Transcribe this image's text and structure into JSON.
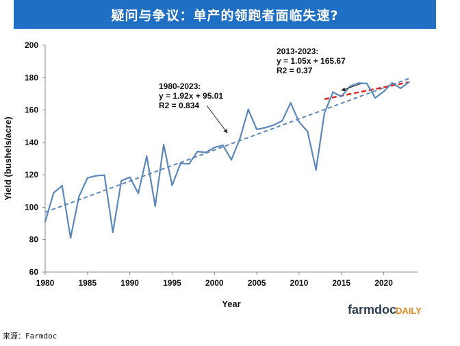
{
  "banner": {
    "title": "疑问与争议：单产的领跑者面临失速?"
  },
  "source": "来源：Farmdoc",
  "logo": {
    "brand": "farmdoc",
    "suffix": "DAILY"
  },
  "colors": {
    "banner": "#1f6fc4",
    "series": "#5b87bb",
    "trend_full": "#5b87bb",
    "trend_recent": "#e02020"
  },
  "chart_data": {
    "type": "line",
    "title": "",
    "xlabel": "Year",
    "ylabel": "Yield (bushels/acre)",
    "xlim": [
      1980,
      2024
    ],
    "ylim": [
      60,
      200
    ],
    "xticks": [
      1980,
      1985,
      1990,
      1995,
      2000,
      2005,
      2010,
      2015,
      2020
    ],
    "yticks": [
      60,
      80,
      100,
      120,
      140,
      160,
      180,
      200
    ],
    "grid": false,
    "series": [
      {
        "name": "Yield",
        "x": [
          1980,
          1981,
          1982,
          1983,
          1984,
          1985,
          1986,
          1987,
          1988,
          1989,
          1990,
          1991,
          1992,
          1993,
          1994,
          1995,
          1996,
          1997,
          1998,
          1999,
          2000,
          2001,
          2002,
          2003,
          2004,
          2005,
          2006,
          2007,
          2008,
          2009,
          2010,
          2011,
          2012,
          2013,
          2014,
          2015,
          2016,
          2017,
          2018,
          2019,
          2020,
          2021,
          2022,
          2023
        ],
        "values": [
          91,
          108.9,
          113.2,
          81.1,
          106.7,
          118,
          119.4,
          119.8,
          84.6,
          116.3,
          118.5,
          108.6,
          131.5,
          100.7,
          138.6,
          113.5,
          127.1,
          126.7,
          134.4,
          133.8,
          136.9,
          138.2,
          129.3,
          142.2,
          160.3,
          148,
          149.1,
          150.7,
          153.3,
          164.4,
          152.6,
          146.8,
          123.1,
          158.1,
          171,
          168.4,
          174.6,
          176.6,
          176.4,
          167.5,
          171.4,
          176.7,
          173.4,
          177.3
        ]
      }
    ],
    "trendlines": [
      {
        "name": "1980-2023",
        "equation": "y = 1.92x + 95.01",
        "r2": "R2 = 0.834",
        "x": [
          1980,
          2023
        ],
        "values": [
          96.9,
          179.5
        ],
        "style": "dashed",
        "color": "#5b87bb"
      },
      {
        "name": "2013-2023",
        "equation": "y = 1.05x + 165.67",
        "r2": "R2 = 0.37",
        "x": [
          2013,
          2023
        ],
        "values": [
          166.7,
          177.2
        ],
        "style": "dashed",
        "color": "#e02020"
      }
    ]
  }
}
